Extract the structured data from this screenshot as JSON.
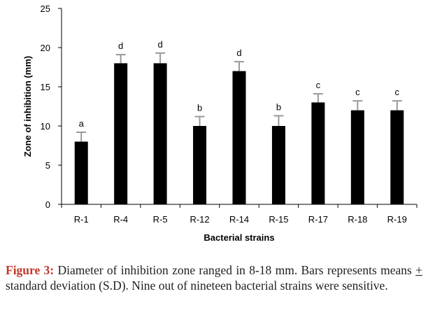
{
  "chart_data": {
    "type": "bar",
    "categories": [
      "R-1",
      "R-4",
      "R-5",
      "R-12",
      "R-14",
      "R-15",
      "R-17",
      "R-18",
      "R-19"
    ],
    "series": [
      {
        "values": [
          8,
          18,
          18,
          10,
          17,
          10,
          13,
          12,
          12
        ],
        "errors": [
          1.2,
          1.1,
          1.3,
          1.2,
          1.2,
          1.3,
          1.1,
          1.2,
          1.2
        ],
        "letters": [
          "a",
          "d",
          "d",
          "b",
          "d",
          "b",
          "c",
          "c",
          "c"
        ],
        "color": "#000000"
      }
    ],
    "xlabel": "Bacterial strains",
    "ylabel": "Zone of inhibition (mm)",
    "ylim": [
      0,
      25
    ],
    "yticks": [
      0,
      5,
      10,
      15,
      20,
      25
    ],
    "grid": false,
    "error_bar_color": "#999999"
  },
  "caption": {
    "label": "Figure 3:",
    "text_before": " Diameter of inhibition zone ranged in 8-18 mm. Bars represents means ",
    "pm": "+",
    "text_after": " standard deviation (S.D). Nine out of nineteen bacterial strains were sensitive."
  }
}
